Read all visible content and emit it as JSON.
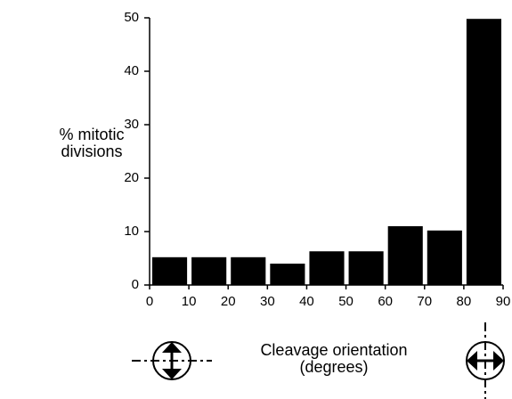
{
  "chart_data": {
    "type": "histogram",
    "ylabel": "% mitotic divisions",
    "xlabel": "Cleavage orientation (degrees)",
    "bins": [
      0,
      10,
      20,
      30,
      40,
      50,
      60,
      70,
      80,
      90
    ],
    "counts": [
      5.2,
      5.2,
      5.2,
      4.0,
      6.3,
      6.3,
      11.0,
      10.2,
      49.8
    ],
    "color": "#000000",
    "xlim": [
      0,
      90
    ],
    "xticks": [
      0,
      10,
      20,
      30,
      40,
      50,
      60,
      70,
      80,
      90
    ],
    "ylim": [
      0,
      50
    ],
    "yticks": [
      0,
      10,
      20,
      30,
      40,
      50
    ]
  }
}
